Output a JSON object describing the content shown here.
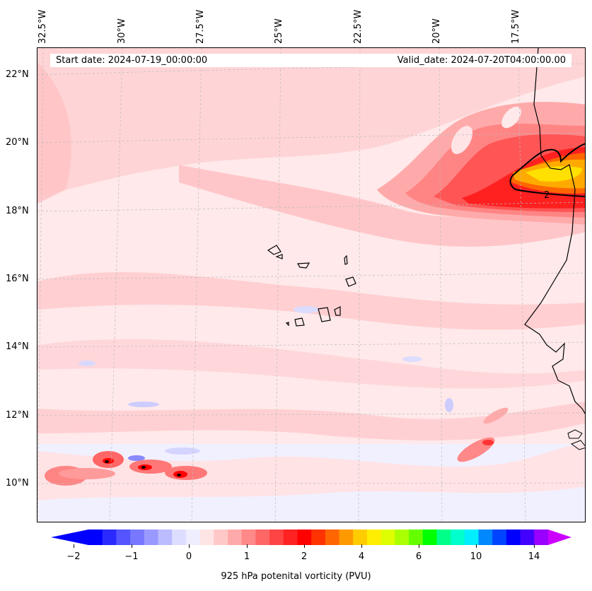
{
  "map": {
    "start_date": "Start date: 2024-07-19_00:00:00",
    "valid_date": "Valid_date: 2024-07-20T04:00:00.00",
    "lon_labels": [
      "32.5°W",
      "30°W",
      "27.5°W",
      "25°W",
      "22.5°W",
      "20°W",
      "17.5°W"
    ],
    "lat_labels": [
      "22°N",
      "20°N",
      "18°N",
      "16°N",
      "14°N",
      "12°N",
      "10°N"
    ],
    "contour_label": "2",
    "colorbar": {
      "label": "925 hPa potenital vorticity (PVU)",
      "ticks": [
        "−2",
        "−1",
        "0",
        "1",
        "2",
        "4",
        "6",
        "10",
        "14"
      ],
      "colors": [
        "#0000ff",
        "#2a2aff",
        "#5555ff",
        "#7777ff",
        "#9999ff",
        "#bbbbff",
        "#ddddff",
        "#eeeeff",
        "#ffe4e4",
        "#ffc8c8",
        "#ffaaaa",
        "#ff8888",
        "#ff6666",
        "#ff4444",
        "#ff2222",
        "#ff0000",
        "#ff3300",
        "#ff6600",
        "#ff9900",
        "#ffcc00",
        "#ffee00",
        "#ddff00",
        "#aaff00",
        "#66ff00",
        "#00ff00",
        "#00ff88",
        "#00ffcc",
        "#00eeff",
        "#0088ff",
        "#0044ff",
        "#0000ff",
        "#4400ff",
        "#9900ff"
      ],
      "extend_low": "#0000ff",
      "extend_high": "#cc00ff"
    }
  }
}
